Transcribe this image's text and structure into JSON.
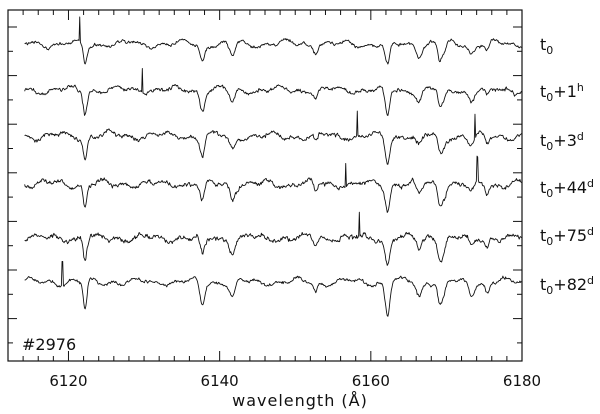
{
  "chart_data": {
    "type": "line",
    "title": "",
    "xlabel": "wavelength (Å)",
    "ylabel": "",
    "xlim": [
      6112,
      6180
    ],
    "x_ticks": [
      6120,
      6140,
      6160,
      6180
    ],
    "x_tick_labels": [
      "6120",
      "6140",
      "6160",
      "6180"
    ],
    "y_ticks": "unlabeled",
    "grid": false,
    "legend": "right",
    "annotation": "#2976",
    "absorption_lines": [
      6122.2,
      6137.7,
      6141.7,
      6152.7,
      6162.2,
      6166.4,
      6169.1,
      6169.6,
      6173.3,
      6175.4
    ],
    "series": [
      {
        "name_base": "t",
        "name_sub": "0",
        "name_sup": "",
        "name_mid": "",
        "line_depth": 0.9,
        "noise": 0.18,
        "spikes": [
          6121.5
        ]
      },
      {
        "name_base": "t",
        "name_sub": "0",
        "name_mid": "+1",
        "name_sup": "h",
        "line_depth": 1.0,
        "noise": 0.2,
        "spikes": [
          6129.8
        ]
      },
      {
        "name_base": "t",
        "name_sub": "0",
        "name_mid": "+3",
        "name_sup": "d",
        "line_depth": 1.0,
        "noise": 0.22,
        "spikes": [
          6158.2,
          6173.8
        ]
      },
      {
        "name_base": "t",
        "name_sub": "0",
        "name_mid": "+44",
        "name_sup": "d",
        "line_depth": 1.0,
        "noise": 0.24,
        "spikes": [
          6156.7,
          6174.1
        ]
      },
      {
        "name_base": "t",
        "name_sub": "0",
        "name_mid": "+75",
        "name_sup": "d",
        "line_depth": 1.0,
        "noise": 0.26,
        "spikes": [
          6158.5
        ]
      },
      {
        "name_base": "t",
        "name_sub": "0",
        "name_mid": "+82",
        "name_sup": "d",
        "line_depth": 1.25,
        "noise": 0.18,
        "spikes": [
          6119.2
        ]
      }
    ]
  }
}
